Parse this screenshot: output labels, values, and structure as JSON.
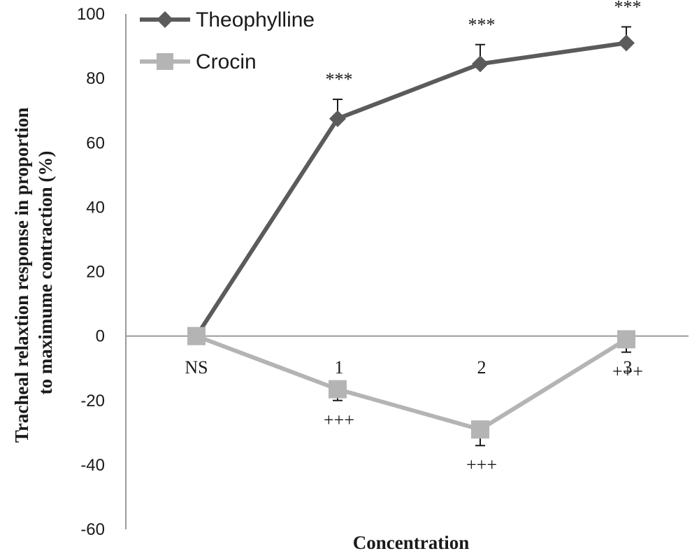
{
  "chart_data": {
    "type": "line",
    "title": "",
    "xlabel": "Concentration",
    "ylabel": "Tracheal relaxtion response in proportion to maximume contraction (%)",
    "ylabel_lines": [
      "Tracheal relaxtion response in proportion",
      "to maximume contraction (%)"
    ],
    "categories": [
      "NS",
      "1",
      "2",
      "3"
    ],
    "ylim": [
      -60,
      100
    ],
    "yticks": [
      "100",
      "80",
      "60",
      "40",
      "20",
      "0",
      "-20",
      "-40",
      "-60"
    ],
    "legend_position": "top-left",
    "series": [
      {
        "name": "Theophylline",
        "values": [
          0,
          67.5,
          84.5,
          91
        ],
        "errors": [
          0,
          6,
          6,
          5
        ],
        "marker": "diamond",
        "color": "#5b5b5b",
        "annotations": [
          "",
          "***",
          "***",
          "***"
        ],
        "annotation_side": "above"
      },
      {
        "name": "Crocin",
        "values": [
          0,
          -16.5,
          -29,
          -1
        ],
        "errors": [
          0,
          3.5,
          5,
          4
        ],
        "marker": "square",
        "color": "#b4b4b4",
        "annotations": [
          "",
          "+++",
          "+++",
          "+++"
        ],
        "annotation_side": "below"
      }
    ]
  }
}
